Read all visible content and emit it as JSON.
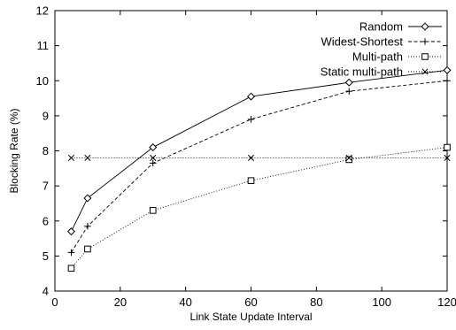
{
  "chart_data": {
    "type": "line",
    "title": "",
    "xlabel": "Link State Update Interval",
    "ylabel": "Blocking Rate (%)",
    "xlim": [
      0,
      120
    ],
    "ylim": [
      4,
      12
    ],
    "xticks": [
      0,
      20,
      40,
      60,
      80,
      100,
      120
    ],
    "yticks": [
      4,
      5,
      6,
      7,
      8,
      9,
      10,
      11,
      12
    ],
    "grid": false,
    "legend_position": "top-right",
    "series": [
      {
        "name": "Random",
        "marker": "diamond",
        "line": "solid",
        "x": [
          5,
          10,
          30,
          60,
          90,
          120
        ],
        "y": [
          5.7,
          6.65,
          8.1,
          9.55,
          9.95,
          10.3
        ]
      },
      {
        "name": "Widest-Shortest",
        "marker": "plus",
        "line": "dashed",
        "x": [
          5,
          10,
          30,
          60,
          90,
          120
        ],
        "y": [
          5.1,
          5.85,
          7.65,
          8.9,
          9.7,
          10.0
        ]
      },
      {
        "name": "Multi-path",
        "marker": "square",
        "line": "dotted",
        "x": [
          5,
          10,
          30,
          60,
          90,
          120
        ],
        "y": [
          4.65,
          5.2,
          6.3,
          7.15,
          7.75,
          8.1
        ]
      },
      {
        "name": "Static multi-path",
        "marker": "cross",
        "line": "dotted",
        "x": [
          5,
          10,
          30,
          60,
          90,
          120
        ],
        "y": [
          7.8,
          7.8,
          7.8,
          7.8,
          7.8,
          7.8
        ]
      }
    ]
  }
}
